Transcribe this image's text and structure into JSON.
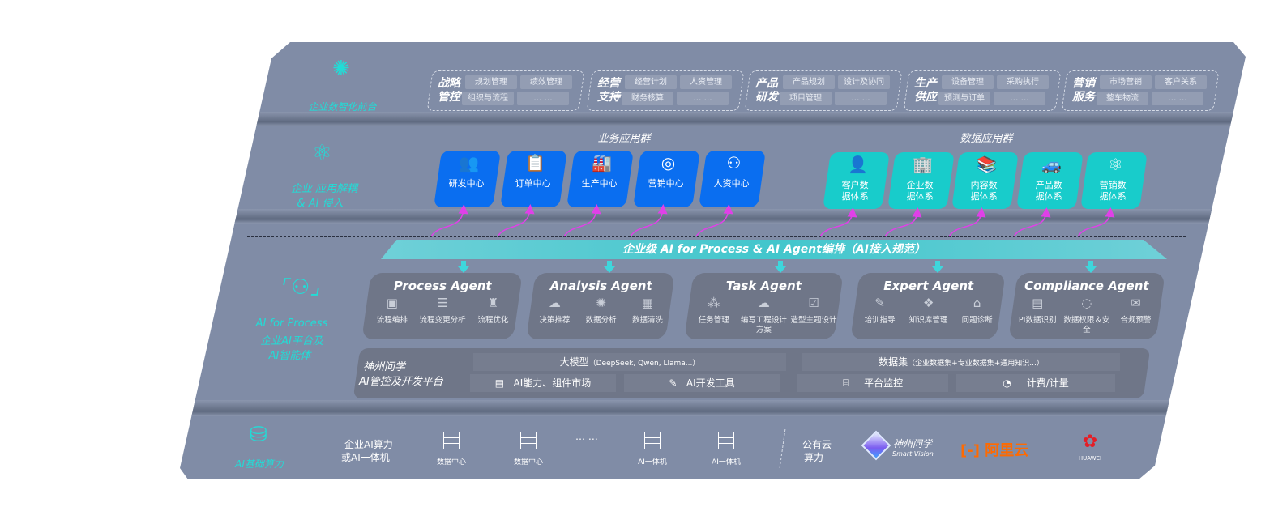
{
  "layers": {
    "front": {
      "label": "企业数智化前台",
      "icon": "brain-icon"
    },
    "apps": {
      "label_1": "企业 应用解耦",
      "label_2": "& AI 侵入",
      "icon": "molecule-icon"
    },
    "ai": {
      "label_1": "AI for Process",
      "label_2": "企业AI平台及",
      "label_3": "AI智能体",
      "icon": "user-scan-icon"
    },
    "infra": {
      "label": "AI基础算力",
      "icon": "database-icon"
    }
  },
  "front_groups": [
    {
      "title": "战略管控",
      "items": [
        "规划管理",
        "绩效管理",
        "组织与流程",
        "… …"
      ]
    },
    {
      "title": "经营支持",
      "items": [
        "经营计划",
        "人资管理",
        "财务核算",
        "… …"
      ]
    },
    {
      "title": "产品研发",
      "items": [
        "产品规划",
        "设计及协同",
        "项目管理",
        "… …"
      ]
    },
    {
      "title": "生产供应",
      "items": [
        "设备管理",
        "采购执行",
        "预测与订单",
        "… …"
      ]
    },
    {
      "title": "营销服务",
      "items": [
        "市场营销",
        "客户关系",
        "整车物流",
        "… …"
      ]
    }
  ],
  "business_apps": {
    "title": "业务应用群",
    "color": "#0a6ef0",
    "items": [
      {
        "label": "研发中心",
        "icon": "users-icon"
      },
      {
        "label": "订单中心",
        "icon": "clipboard-icon"
      },
      {
        "label": "生产中心",
        "icon": "factory-icon"
      },
      {
        "label": "营销中心",
        "icon": "target-icon"
      },
      {
        "label": "人资中心",
        "icon": "person-icon"
      }
    ]
  },
  "data_apps": {
    "title": "数据应用群",
    "color": "#18cccb",
    "items": [
      {
        "label": "客户数据体系",
        "icon": "user-icon"
      },
      {
        "label": "企业数据体系",
        "icon": "building-icon"
      },
      {
        "label": "内容数据体系",
        "icon": "books-icon"
      },
      {
        "label": "产品数据体系",
        "icon": "car-icon"
      },
      {
        "label": "营销数据体系",
        "icon": "atom-icon"
      }
    ]
  },
  "banner": "企业级 AI for Process & AI Agent编排（AI接入规范）",
  "agents": [
    {
      "title": "Process Agent",
      "features": [
        "流程编排",
        "流程变更分析",
        "流程优化"
      ]
    },
    {
      "title": "Analysis Agent",
      "features": [
        "决策推荐",
        "数据分析",
        "数据清洗"
      ]
    },
    {
      "title": "Task Agent",
      "features": [
        "任务管理",
        "编写工程设计方案",
        "造型主题设计"
      ]
    },
    {
      "title": "Expert Agent",
      "features": [
        "培训指导",
        "知识库管理",
        "问题诊断"
      ]
    },
    {
      "title": "Compliance Agent",
      "features": [
        "PI数据识别",
        "数据权限＆安全",
        "合规预警"
      ]
    }
  ],
  "platform": {
    "title_1": "神州问学",
    "title_2": "AI管控及开发平台",
    "model": "大模型",
    "model_note": "（DeepSeek, Qwen, Llama...）",
    "dataset": "数据集",
    "dataset_note": "（企业数据集+专业数据集+通用知识...）",
    "tools": [
      "AI能力、组件市场",
      "AI开发工具",
      "平台监控",
      "计费/计量"
    ]
  },
  "infra": {
    "enterprise_1": "企业AI算力",
    "enterprise_2": "或AI一体机",
    "servers": [
      "数据中心",
      "数据中心",
      "AI一体机",
      "AI一体机"
    ],
    "ellipsis": "… …",
    "public_1": "公有云",
    "public_2": "算力",
    "vendors": {
      "sv_cn": "神州问学",
      "sv_en": "Smart Vision",
      "aliyun": "阿里云",
      "huawei": "HUAWEI"
    }
  },
  "colors": {
    "panel": "#808ca6",
    "teal": "#22dcd6",
    "arrow": "#e040e8",
    "aliyun": "#ff6a00",
    "huawei": "#e41e26"
  }
}
